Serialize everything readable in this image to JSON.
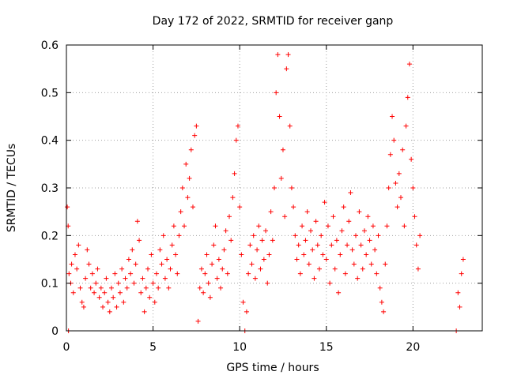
{
  "chart_data": {
    "type": "scatter",
    "title": "Day 172 of 2022, SRMTID for receiver ganp",
    "xlabel": "GPS time / hours",
    "ylabel": "SRMTID / TECUs",
    "xlim": [
      0,
      24
    ],
    "ylim": [
      0,
      0.6
    ],
    "xticks": [
      0,
      5,
      10,
      15,
      20
    ],
    "yticks": [
      0,
      0.1,
      0.2,
      0.3,
      0.4,
      0.5,
      0.6
    ],
    "grid": true,
    "marker": "plus",
    "series": [
      {
        "name": "SRMTID",
        "color": "#ff0000",
        "points": [
          [
            0.05,
            0.26
          ],
          [
            0.1,
            0.22
          ],
          [
            0.12,
            0.0
          ],
          [
            0.15,
            0.12
          ],
          [
            0.25,
            0.1
          ],
          [
            0.3,
            0.14
          ],
          [
            0.4,
            0.08
          ],
          [
            0.5,
            0.16
          ],
          [
            0.6,
            0.13
          ],
          [
            0.7,
            0.18
          ],
          [
            0.8,
            0.09
          ],
          [
            0.9,
            0.06
          ],
          [
            1.0,
            0.05
          ],
          [
            1.1,
            0.11
          ],
          [
            1.2,
            0.17
          ],
          [
            1.3,
            0.14
          ],
          [
            1.4,
            0.09
          ],
          [
            1.5,
            0.12
          ],
          [
            1.6,
            0.08
          ],
          [
            1.7,
            0.1
          ],
          [
            1.8,
            0.13
          ],
          [
            1.9,
            0.07
          ],
          [
            2.0,
            0.09
          ],
          [
            2.1,
            0.05
          ],
          [
            2.2,
            0.08
          ],
          [
            2.3,
            0.11
          ],
          [
            2.4,
            0.06
          ],
          [
            2.5,
            0.04
          ],
          [
            2.6,
            0.09
          ],
          [
            2.7,
            0.07
          ],
          [
            2.8,
            0.12
          ],
          [
            2.9,
            0.05
          ],
          [
            3.0,
            0.1
          ],
          [
            3.1,
            0.08
          ],
          [
            3.2,
            0.13
          ],
          [
            3.3,
            0.06
          ],
          [
            3.4,
            0.11
          ],
          [
            3.5,
            0.09
          ],
          [
            3.6,
            0.15
          ],
          [
            3.7,
            0.12
          ],
          [
            3.8,
            0.17
          ],
          [
            3.9,
            0.1
          ],
          [
            4.0,
            0.14
          ],
          [
            4.1,
            0.23
          ],
          [
            4.2,
            0.19
          ],
          [
            4.3,
            0.08
          ],
          [
            4.4,
            0.11
          ],
          [
            4.5,
            0.04
          ],
          [
            4.6,
            0.09
          ],
          [
            4.7,
            0.13
          ],
          [
            4.8,
            0.07
          ],
          [
            4.9,
            0.16
          ],
          [
            5.0,
            0.1
          ],
          [
            5.1,
            0.06
          ],
          [
            5.2,
            0.12
          ],
          [
            5.3,
            0.09
          ],
          [
            5.4,
            0.17
          ],
          [
            5.5,
            0.14
          ],
          [
            5.6,
            0.2
          ],
          [
            5.7,
            0.11
          ],
          [
            5.8,
            0.15
          ],
          [
            5.9,
            0.09
          ],
          [
            6.0,
            0.13
          ],
          [
            6.1,
            0.18
          ],
          [
            6.2,
            0.22
          ],
          [
            6.3,
            0.16
          ],
          [
            6.4,
            0.12
          ],
          [
            6.5,
            0.2
          ],
          [
            6.6,
            0.25
          ],
          [
            6.7,
            0.3
          ],
          [
            6.8,
            0.22
          ],
          [
            6.9,
            0.35
          ],
          [
            7.0,
            0.28
          ],
          [
            7.1,
            0.32
          ],
          [
            7.2,
            0.38
          ],
          [
            7.3,
            0.26
          ],
          [
            7.4,
            0.41
          ],
          [
            7.5,
            0.43
          ],
          [
            7.6,
            0.02
          ],
          [
            7.7,
            0.09
          ],
          [
            7.8,
            0.13
          ],
          [
            7.9,
            0.08
          ],
          [
            8.0,
            0.12
          ],
          [
            8.1,
            0.16
          ],
          [
            8.2,
            0.1
          ],
          [
            8.3,
            0.07
          ],
          [
            8.4,
            0.14
          ],
          [
            8.5,
            0.18
          ],
          [
            8.6,
            0.22
          ],
          [
            8.7,
            0.11
          ],
          [
            8.8,
            0.15
          ],
          [
            8.9,
            0.09
          ],
          [
            9.0,
            0.13
          ],
          [
            9.1,
            0.17
          ],
          [
            9.2,
            0.21
          ],
          [
            9.3,
            0.12
          ],
          [
            9.4,
            0.24
          ],
          [
            9.5,
            0.19
          ],
          [
            9.6,
            0.28
          ],
          [
            9.7,
            0.33
          ],
          [
            9.8,
            0.4
          ],
          [
            9.9,
            0.43
          ],
          [
            10.0,
            0.26
          ],
          [
            10.1,
            0.16
          ],
          [
            10.2,
            0.06
          ],
          [
            10.3,
            0.0
          ],
          [
            10.4,
            0.04
          ],
          [
            10.5,
            0.12
          ],
          [
            10.6,
            0.18
          ],
          [
            10.7,
            0.14
          ],
          [
            10.8,
            0.2
          ],
          [
            10.9,
            0.11
          ],
          [
            11.0,
            0.17
          ],
          [
            11.1,
            0.22
          ],
          [
            11.2,
            0.13
          ],
          [
            11.3,
            0.19
          ],
          [
            11.4,
            0.15
          ],
          [
            11.5,
            0.21
          ],
          [
            11.6,
            0.1
          ],
          [
            11.7,
            0.16
          ],
          [
            11.8,
            0.25
          ],
          [
            11.9,
            0.19
          ],
          [
            12.0,
            0.3
          ],
          [
            12.1,
            0.5
          ],
          [
            12.2,
            0.58
          ],
          [
            12.3,
            0.45
          ],
          [
            12.4,
            0.32
          ],
          [
            12.5,
            0.38
          ],
          [
            12.6,
            0.24
          ],
          [
            12.7,
            0.55
          ],
          [
            12.8,
            0.58
          ],
          [
            12.9,
            0.43
          ],
          [
            13.0,
            0.3
          ],
          [
            13.1,
            0.26
          ],
          [
            13.2,
            0.2
          ],
          [
            13.3,
            0.15
          ],
          [
            13.4,
            0.18
          ],
          [
            13.5,
            0.12
          ],
          [
            13.6,
            0.22
          ],
          [
            13.7,
            0.16
          ],
          [
            13.8,
            0.19
          ],
          [
            13.9,
            0.25
          ],
          [
            14.0,
            0.14
          ],
          [
            14.1,
            0.21
          ],
          [
            14.2,
            0.17
          ],
          [
            14.3,
            0.11
          ],
          [
            14.4,
            0.23
          ],
          [
            14.5,
            0.18
          ],
          [
            14.6,
            0.13
          ],
          [
            14.7,
            0.2
          ],
          [
            14.8,
            0.16
          ],
          [
            14.9,
            0.27
          ],
          [
            15.0,
            0.15
          ],
          [
            15.1,
            0.22
          ],
          [
            15.2,
            0.1
          ],
          [
            15.3,
            0.18
          ],
          [
            15.4,
            0.24
          ],
          [
            15.5,
            0.13
          ],
          [
            15.6,
            0.19
          ],
          [
            15.7,
            0.08
          ],
          [
            15.8,
            0.16
          ],
          [
            15.9,
            0.21
          ],
          [
            16.0,
            0.26
          ],
          [
            16.1,
            0.12
          ],
          [
            16.2,
            0.18
          ],
          [
            16.3,
            0.23
          ],
          [
            16.4,
            0.29
          ],
          [
            16.5,
            0.17
          ],
          [
            16.6,
            0.14
          ],
          [
            16.7,
            0.2
          ],
          [
            16.8,
            0.11
          ],
          [
            16.9,
            0.25
          ],
          [
            17.0,
            0.18
          ],
          [
            17.1,
            0.13
          ],
          [
            17.2,
            0.21
          ],
          [
            17.3,
            0.16
          ],
          [
            17.4,
            0.24
          ],
          [
            17.5,
            0.19
          ],
          [
            17.6,
            0.14
          ],
          [
            17.7,
            0.22
          ],
          [
            17.8,
            0.17
          ],
          [
            17.9,
            0.12
          ],
          [
            18.0,
            0.2
          ],
          [
            18.1,
            0.09
          ],
          [
            18.2,
            0.06
          ],
          [
            18.3,
            0.04
          ],
          [
            18.4,
            0.14
          ],
          [
            18.5,
            0.22
          ],
          [
            18.6,
            0.3
          ],
          [
            18.7,
            0.37
          ],
          [
            18.8,
            0.45
          ],
          [
            18.9,
            0.4
          ],
          [
            19.0,
            0.31
          ],
          [
            19.1,
            0.26
          ],
          [
            19.2,
            0.33
          ],
          [
            19.3,
            0.28
          ],
          [
            19.4,
            0.38
          ],
          [
            19.5,
            0.22
          ],
          [
            19.6,
            0.43
          ],
          [
            19.7,
            0.49
          ],
          [
            19.8,
            0.56
          ],
          [
            19.9,
            0.36
          ],
          [
            20.0,
            0.3
          ],
          [
            20.1,
            0.24
          ],
          [
            20.2,
            0.18
          ],
          [
            20.3,
            0.13
          ],
          [
            20.4,
            0.2
          ],
          [
            22.5,
            0.0
          ],
          [
            22.6,
            0.08
          ],
          [
            22.7,
            0.05
          ],
          [
            22.8,
            0.12
          ],
          [
            22.9,
            0.15
          ]
        ]
      }
    ]
  }
}
